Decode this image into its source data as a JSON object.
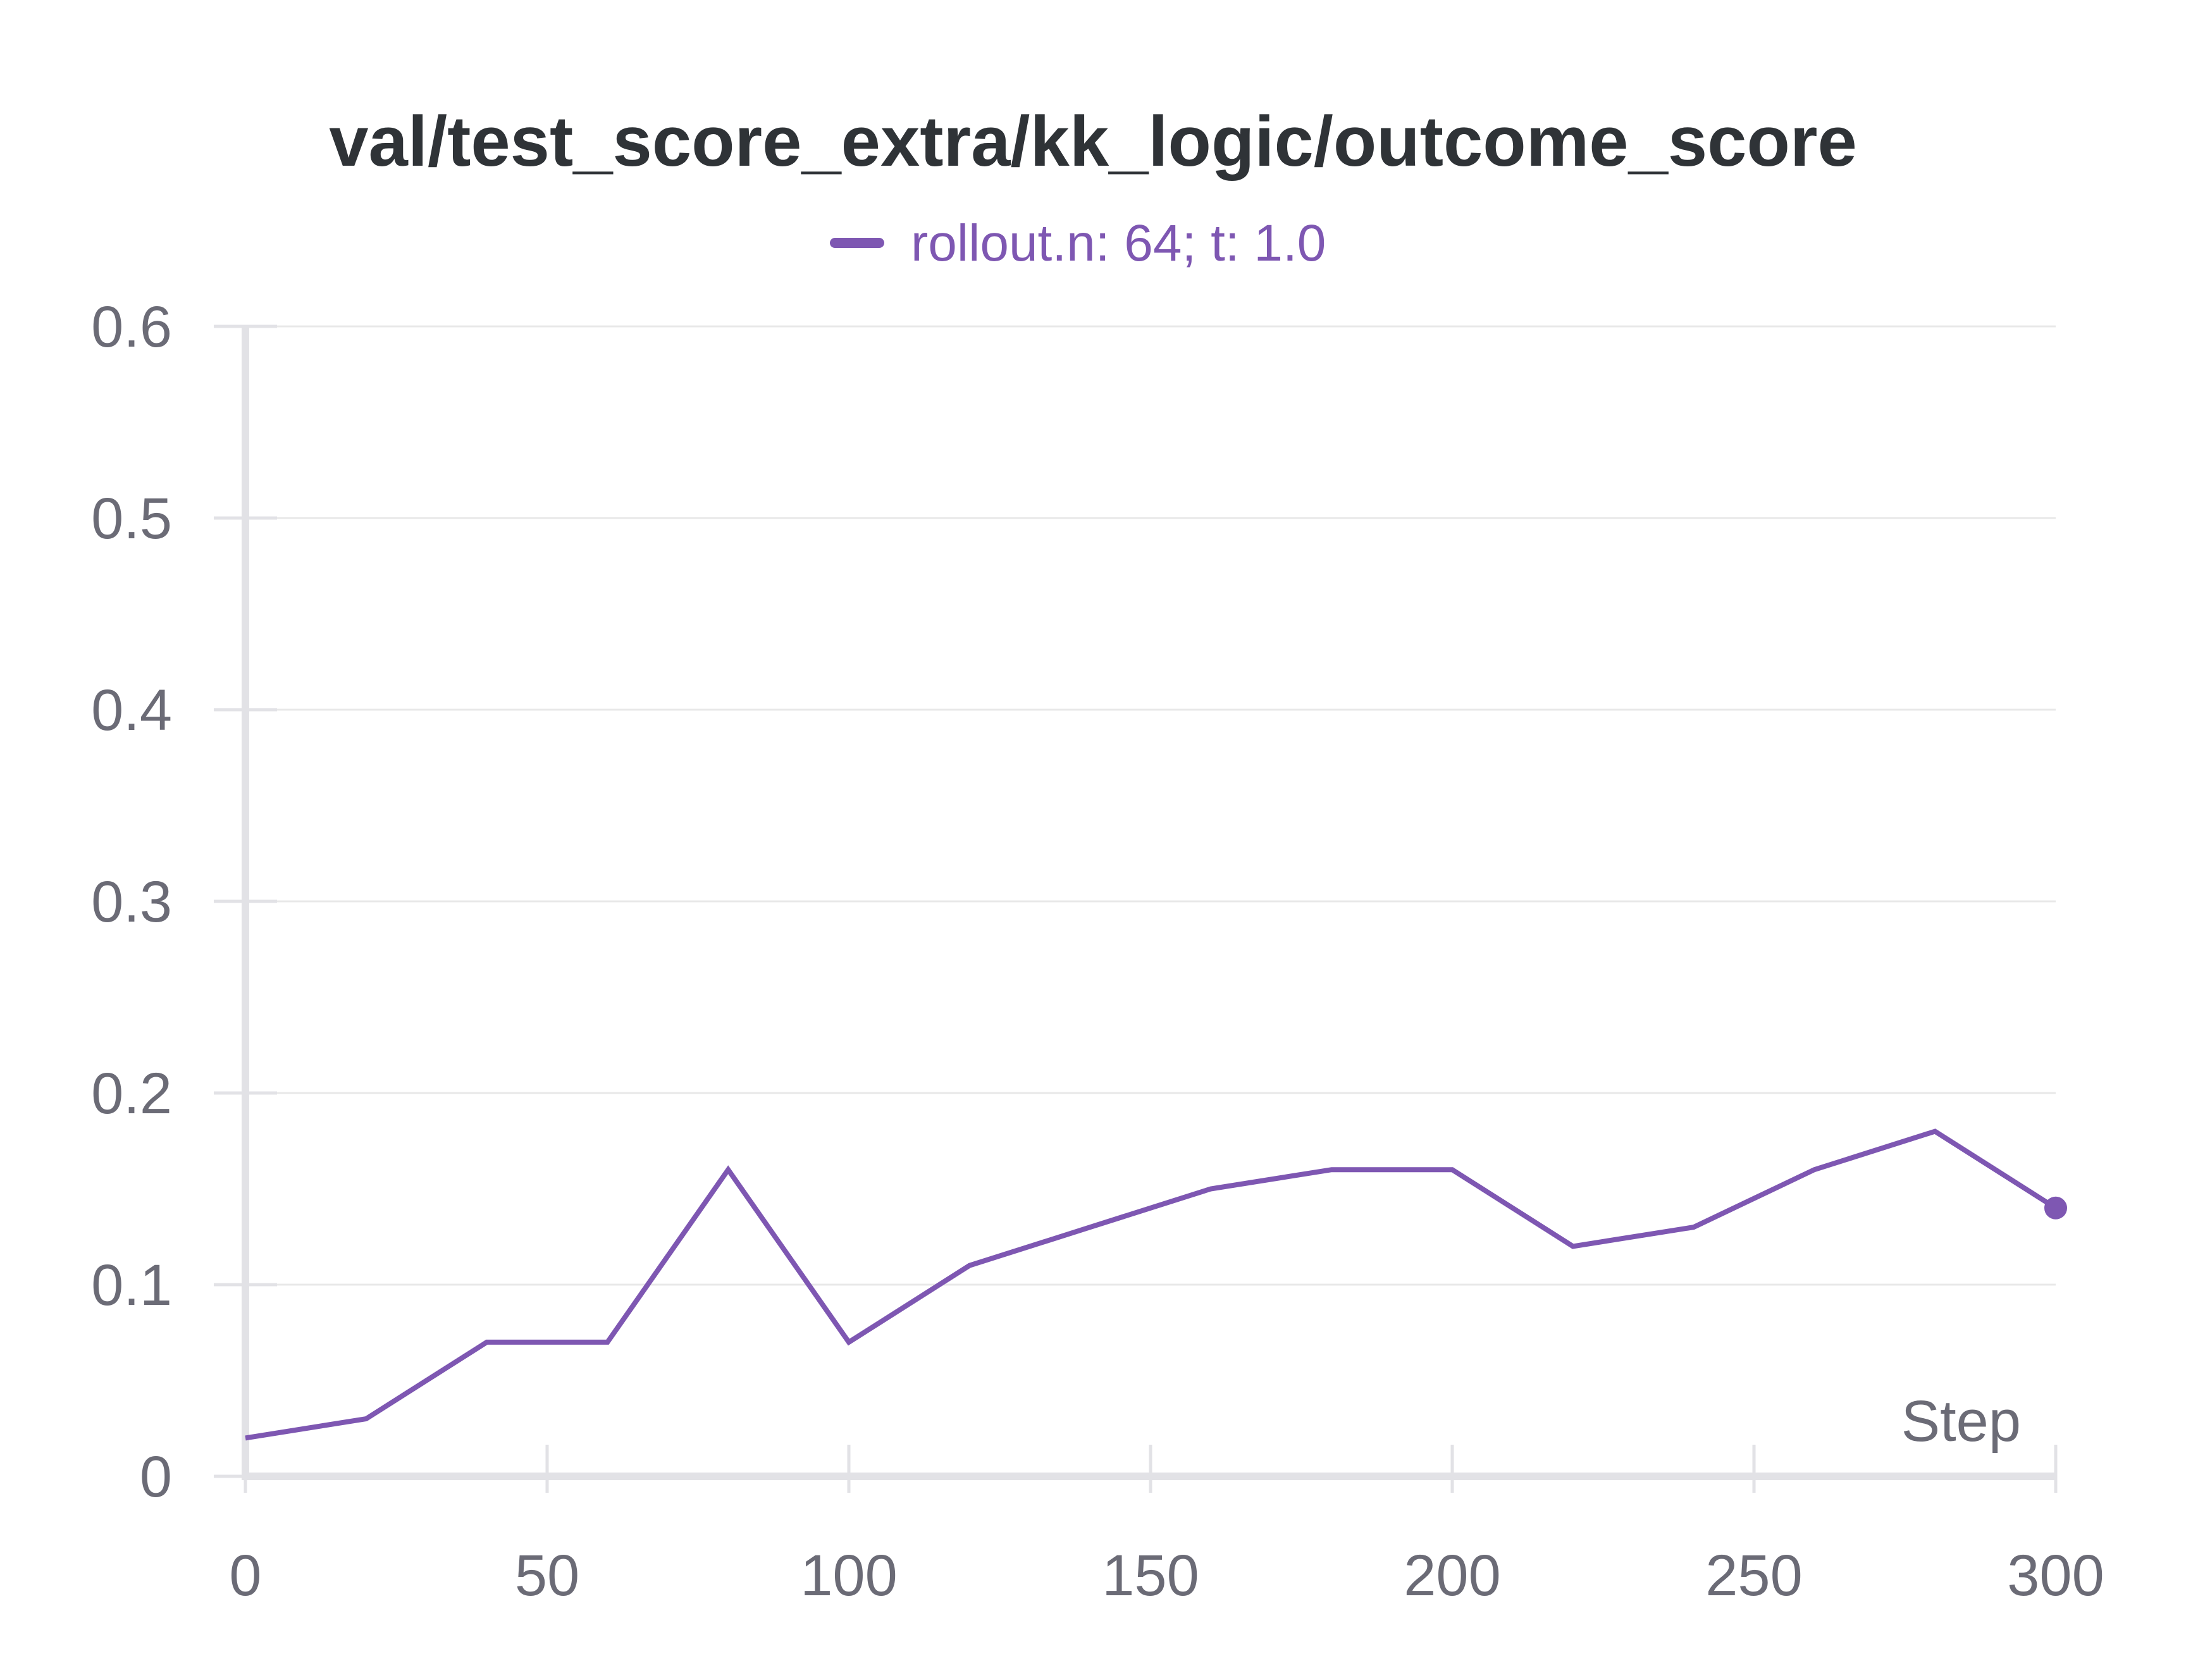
{
  "chart_data": {
    "type": "line",
    "title": "val/test_score_extra/kk_logic/outcome_score",
    "xlabel": "Step",
    "ylabel": "",
    "xlim": [
      0,
      300
    ],
    "ylim": [
      0,
      0.6
    ],
    "x_ticks": [
      0,
      50,
      100,
      150,
      200,
      250,
      300
    ],
    "x_tick_labels": [
      "0",
      "50",
      "100",
      "150",
      "200",
      "250",
      "300"
    ],
    "y_ticks": [
      0,
      0.1,
      0.2,
      0.3,
      0.4,
      0.5,
      0.6
    ],
    "y_tick_labels": [
      "0",
      "0.1",
      "0.2",
      "0.3",
      "0.4",
      "0.5",
      "0.6"
    ],
    "grid": true,
    "legend_position": "top-center",
    "series": [
      {
        "name": "rollout.n: 64; t: 1.0",
        "color": "#7e57b2",
        "x": [
          0,
          20,
          40,
          60,
          80,
          100,
          120,
          140,
          160,
          180,
          200,
          220,
          240,
          260,
          280,
          300
        ],
        "values": [
          0.02,
          0.03,
          0.07,
          0.07,
          0.16,
          0.07,
          0.11,
          0.13,
          0.15,
          0.16,
          0.16,
          0.12,
          0.13,
          0.16,
          0.18,
          0.14
        ],
        "end_marker": true
      }
    ]
  },
  "colors": {
    "grid": "#e8e8e8",
    "axis": "#e2e2e6",
    "tick_text": "#6b6b76",
    "title": "#2f3337"
  }
}
